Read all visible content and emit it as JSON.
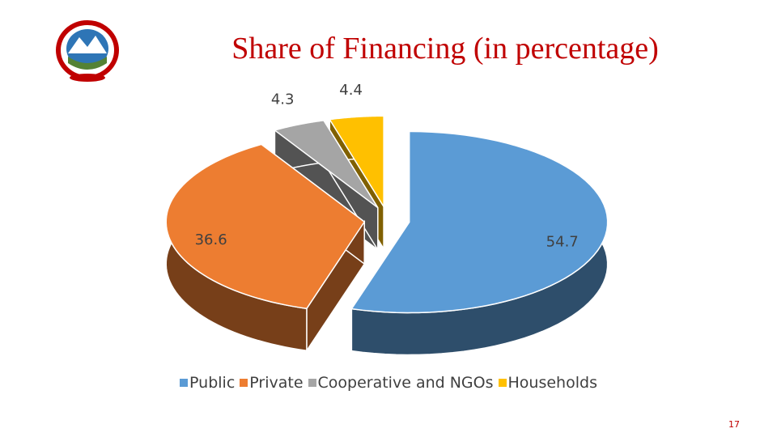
{
  "chart_data": {
    "type": "pie3d",
    "title": "Share of Financing (in percentage)",
    "categories": [
      "Public",
      "Private",
      "Cooperative and NGOs",
      "Households"
    ],
    "values": [
      54.7,
      36.6,
      4.3,
      4.4
    ],
    "colors": [
      "#5b9bd5",
      "#ed7d31",
      "#a5a5a5",
      "#ffc000"
    ],
    "legend": "bottom"
  },
  "page_number": "17"
}
